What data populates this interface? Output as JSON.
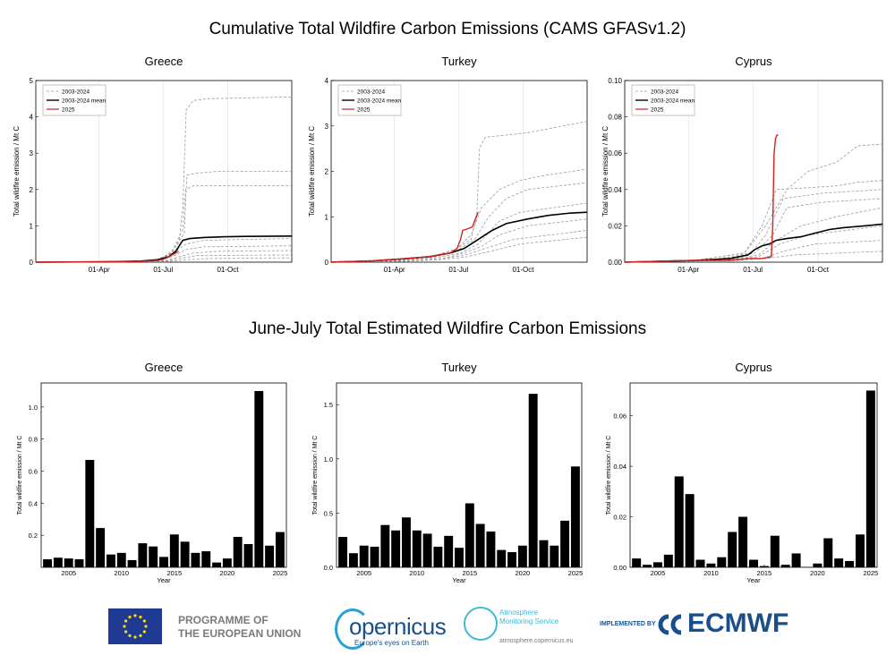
{
  "titles": {
    "top": "Cumulative Total Wildfire Carbon Emissions (CAMS GFASv1.2)",
    "bottom": "June-July Total Estimated Wildfire Carbon Emissions"
  },
  "colors": {
    "history": "#9a9a9a",
    "mean": "#000000",
    "current": "#d62020",
    "bar": "#000000"
  },
  "chart_data": [
    {
      "type": "line",
      "panel": "cumulative-greece",
      "title": "Greece",
      "ylabel": "Total wildfire emission / Mt C",
      "x_ticks": [
        "01-Apr",
        "01-Jul",
        "01-Oct"
      ],
      "x_tick_days": [
        91,
        182,
        274
      ],
      "xlim": [
        1,
        365
      ],
      "ylim": [
        0,
        5
      ],
      "y_ticks": [
        0,
        1,
        2,
        3,
        4,
        5
      ],
      "y_tick_labels": [
        "0",
        "1",
        "2",
        "3",
        "4",
        "5"
      ],
      "legend": [
        "2003-2024",
        "2003-2024 mean",
        "2025"
      ],
      "legend_position": "top-left",
      "series": [
        {
          "name": "2003-2024",
          "kind": "history",
          "x": [
            1,
            120,
            170,
            190,
            205,
            210,
            215,
            225,
            245,
            365
          ],
          "y": [
            0,
            0.02,
            0.05,
            0.2,
            0.6,
            1.5,
            4.2,
            4.45,
            4.5,
            4.55
          ]
        },
        {
          "name": "2003-2024",
          "kind": "history",
          "x": [
            1,
            120,
            170,
            195,
            212,
            216,
            230,
            260,
            365
          ],
          "y": [
            0,
            0.02,
            0.05,
            0.25,
            0.8,
            2.4,
            2.45,
            2.5,
            2.5
          ]
        },
        {
          "name": "2003-2024",
          "kind": "history",
          "x": [
            1,
            120,
            175,
            195,
            210,
            214,
            225,
            260,
            365
          ],
          "y": [
            0,
            0.02,
            0.05,
            0.3,
            0.9,
            2.0,
            2.1,
            2.1,
            2.1
          ]
        },
        {
          "name": "2003-2024",
          "kind": "history",
          "x": [
            1,
            140,
            180,
            200,
            215,
            240,
            280,
            365
          ],
          "y": [
            0,
            0.02,
            0.08,
            0.3,
            0.5,
            0.6,
            0.62,
            0.65
          ]
        },
        {
          "name": "2003-2024",
          "kind": "history",
          "x": [
            1,
            140,
            180,
            200,
            215,
            240,
            365
          ],
          "y": [
            0,
            0.01,
            0.05,
            0.2,
            0.35,
            0.42,
            0.45
          ]
        },
        {
          "name": "2003-2024",
          "kind": "history",
          "x": [
            1,
            140,
            185,
            205,
            225,
            260,
            365
          ],
          "y": [
            0,
            0.01,
            0.04,
            0.15,
            0.25,
            0.3,
            0.32
          ]
        },
        {
          "name": "2003-2024",
          "kind": "history",
          "x": [
            1,
            150,
            185,
            205,
            230,
            365
          ],
          "y": [
            0,
            0.01,
            0.03,
            0.1,
            0.18,
            0.2
          ]
        },
        {
          "name": "2003-2024",
          "kind": "history",
          "x": [
            1,
            150,
            190,
            215,
            250,
            365
          ],
          "y": [
            0,
            0.01,
            0.02,
            0.07,
            0.1,
            0.12
          ]
        },
        {
          "name": "2003-2024 mean",
          "kind": "mean",
          "x": [
            1,
            100,
            150,
            175,
            190,
            200,
            205,
            210,
            220,
            240,
            270,
            300,
            365
          ],
          "y": [
            0,
            0.01,
            0.03,
            0.07,
            0.15,
            0.3,
            0.45,
            0.6,
            0.65,
            0.68,
            0.7,
            0.71,
            0.72
          ]
        },
        {
          "name": "2025",
          "kind": "current",
          "x": [
            1,
            100,
            150,
            175,
            185,
            195,
            200,
            204
          ],
          "y": [
            0,
            0.01,
            0.02,
            0.05,
            0.1,
            0.2,
            0.25,
            0.3
          ]
        }
      ]
    },
    {
      "type": "line",
      "panel": "cumulative-turkey",
      "title": "Turkey",
      "ylabel": "Total wildfire emission / Mt C",
      "x_ticks": [
        "01-Apr",
        "01-Jul",
        "01-Oct"
      ],
      "x_tick_days": [
        91,
        182,
        274
      ],
      "xlim": [
        1,
        365
      ],
      "ylim": [
        0,
        4
      ],
      "y_ticks": [
        0,
        1,
        2,
        3,
        4
      ],
      "y_tick_labels": [
        "0",
        "1",
        "2",
        "3",
        "4"
      ],
      "legend": [
        "2003-2024",
        "2003-2024 mean",
        "2025"
      ],
      "legend_position": "top-left",
      "series": [
        {
          "name": "2003-2024",
          "kind": "history",
          "x": [
            1,
            100,
            150,
            180,
            200,
            208,
            212,
            220,
            250,
            280,
            330,
            365
          ],
          "y": [
            0,
            0.05,
            0.15,
            0.3,
            0.5,
            1.0,
            2.5,
            2.75,
            2.8,
            2.85,
            3.0,
            3.1
          ]
        },
        {
          "name": "2003-2024",
          "kind": "history",
          "x": [
            1,
            100,
            150,
            180,
            200,
            215,
            240,
            270,
            300,
            365
          ],
          "y": [
            0,
            0.05,
            0.15,
            0.3,
            0.6,
            1.2,
            1.6,
            1.8,
            1.9,
            2.05
          ]
        },
        {
          "name": "2003-2024",
          "kind": "history",
          "x": [
            1,
            100,
            150,
            180,
            205,
            225,
            250,
            280,
            365
          ],
          "y": [
            0,
            0.05,
            0.12,
            0.25,
            0.5,
            1.0,
            1.4,
            1.6,
            1.75
          ]
        },
        {
          "name": "2003-2024",
          "kind": "history",
          "x": [
            1,
            100,
            150,
            185,
            210,
            240,
            270,
            365
          ],
          "y": [
            0,
            0.04,
            0.1,
            0.2,
            0.4,
            0.9,
            1.1,
            1.3
          ]
        },
        {
          "name": "2003-2024",
          "kind": "history",
          "x": [
            1,
            110,
            160,
            190,
            215,
            240,
            280,
            365
          ],
          "y": [
            0,
            0.03,
            0.08,
            0.2,
            0.35,
            0.6,
            0.8,
            0.95
          ]
        },
        {
          "name": "2003-2024",
          "kind": "history",
          "x": [
            1,
            110,
            160,
            190,
            220,
            260,
            365
          ],
          "y": [
            0,
            0.03,
            0.08,
            0.15,
            0.3,
            0.5,
            0.7
          ]
        },
        {
          "name": "2003-2024",
          "kind": "history",
          "x": [
            1,
            110,
            160,
            195,
            230,
            270,
            365
          ],
          "y": [
            0,
            0.02,
            0.06,
            0.12,
            0.25,
            0.4,
            0.55
          ]
        },
        {
          "name": "2003-2024 mean",
          "kind": "mean",
          "x": [
            1,
            60,
            100,
            140,
            170,
            190,
            200,
            215,
            230,
            250,
            280,
            310,
            340,
            365
          ],
          "y": [
            0,
            0.03,
            0.07,
            0.12,
            0.2,
            0.3,
            0.4,
            0.55,
            0.7,
            0.85,
            0.95,
            1.03,
            1.08,
            1.1
          ]
        },
        {
          "name": "2025",
          "kind": "current",
          "x": [
            1,
            60,
            100,
            140,
            170,
            180,
            185,
            188,
            192,
            198,
            202,
            206,
            210
          ],
          "y": [
            0,
            0.03,
            0.07,
            0.12,
            0.2,
            0.3,
            0.5,
            0.7,
            0.72,
            0.75,
            0.78,
            0.95,
            1.1
          ]
        }
      ]
    },
    {
      "type": "line",
      "panel": "cumulative-cyprus",
      "title": "Cyprus",
      "ylabel": "Total wildfire emission / Mt C",
      "x_ticks": [
        "01-Apr",
        "01-Jul",
        "01-Oct"
      ],
      "x_tick_days": [
        91,
        182,
        274
      ],
      "xlim": [
        1,
        365
      ],
      "ylim": [
        0,
        0.1
      ],
      "y_ticks": [
        0,
        0.02,
        0.04,
        0.06,
        0.08,
        0.1
      ],
      "y_tick_labels": [
        "0.00",
        "0.02",
        "0.04",
        "0.06",
        "0.08",
        "0.10"
      ],
      "legend": [
        "2003-2024",
        "2003-2024 mean",
        "2025"
      ],
      "legend_position": "top-left",
      "series": [
        {
          "name": "2003-2024",
          "kind": "history",
          "x": [
            1,
            100,
            170,
            200,
            230,
            260,
            300,
            330,
            365
          ],
          "y": [
            0,
            0.001,
            0.005,
            0.02,
            0.04,
            0.05,
            0.055,
            0.064,
            0.065
          ]
        },
        {
          "name": "2003-2024",
          "kind": "history",
          "x": [
            1,
            100,
            170,
            195,
            215,
            260,
            300,
            330,
            365
          ],
          "y": [
            0,
            0.001,
            0.005,
            0.02,
            0.04,
            0.041,
            0.042,
            0.044,
            0.045
          ]
        },
        {
          "name": "2003-2024",
          "kind": "history",
          "x": [
            1,
            120,
            180,
            200,
            225,
            280,
            365
          ],
          "y": [
            0,
            0.001,
            0.005,
            0.015,
            0.035,
            0.038,
            0.04
          ]
        },
        {
          "name": "2003-2024",
          "kind": "history",
          "x": [
            1,
            130,
            185,
            210,
            230,
            280,
            365
          ],
          "y": [
            0,
            0.001,
            0.005,
            0.015,
            0.03,
            0.033,
            0.035
          ]
        },
        {
          "name": "2003-2024",
          "kind": "history",
          "x": [
            1,
            140,
            190,
            215,
            250,
            300,
            365
          ],
          "y": [
            0,
            0.001,
            0.004,
            0.012,
            0.02,
            0.025,
            0.03
          ]
        },
        {
          "name": "2003-2024",
          "kind": "history",
          "x": [
            1,
            140,
            190,
            220,
            260,
            365
          ],
          "y": [
            0,
            0.001,
            0.003,
            0.01,
            0.015,
            0.02
          ]
        },
        {
          "name": "2003-2024",
          "kind": "history",
          "x": [
            1,
            150,
            195,
            225,
            270,
            365
          ],
          "y": [
            0,
            0.001,
            0.002,
            0.006,
            0.01,
            0.012
          ]
        },
        {
          "name": "2003-2024",
          "kind": "history",
          "x": [
            1,
            160,
            200,
            240,
            365
          ],
          "y": [
            0,
            0.001,
            0.002,
            0.004,
            0.006
          ]
        },
        {
          "name": "2003-2024 mean",
          "kind": "mean",
          "x": [
            1,
            100,
            150,
            175,
            185,
            195,
            205,
            215,
            230,
            250,
            270,
            290,
            310,
            340,
            365
          ],
          "y": [
            0,
            0.001,
            0.002,
            0.004,
            0.007,
            0.009,
            0.01,
            0.012,
            0.013,
            0.014,
            0.016,
            0.018,
            0.019,
            0.02,
            0.021
          ]
        },
        {
          "name": "2025",
          "kind": "current",
          "x": [
            1,
            100,
            150,
            175,
            185,
            195,
            208,
            210,
            212,
            214,
            216,
            218
          ],
          "y": [
            0,
            0.001,
            0.001,
            0.002,
            0.002,
            0.002,
            0.003,
            0.02,
            0.06,
            0.068,
            0.07,
            0.07
          ]
        }
      ]
    },
    {
      "type": "bar",
      "panel": "bars-greece",
      "title": "Greece",
      "xlabel": "Year",
      "ylabel": "Total wildfire emission / Mt C",
      "categories": [
        2003,
        2004,
        2005,
        2006,
        2007,
        2008,
        2009,
        2010,
        2011,
        2012,
        2013,
        2014,
        2015,
        2016,
        2017,
        2018,
        2019,
        2020,
        2021,
        2022,
        2023,
        2024,
        2025
      ],
      "values": [
        0.05,
        0.06,
        0.055,
        0.05,
        0.67,
        0.245,
        0.08,
        0.09,
        0.045,
        0.15,
        0.13,
        0.065,
        0.205,
        0.16,
        0.09,
        0.1,
        0.03,
        0.055,
        0.19,
        0.145,
        1.1,
        0.135,
        0.22
      ],
      "x_ticks": [
        2005,
        2010,
        2015,
        2020,
        2025
      ],
      "ylim": [
        0,
        1.15
      ],
      "y_ticks": [
        0.2,
        0.4,
        0.6,
        0.8,
        1.0
      ],
      "y_tick_labels": [
        "0.2",
        "0.4",
        "0.6",
        "0.8",
        "1.0"
      ]
    },
    {
      "type": "bar",
      "panel": "bars-turkey",
      "title": "Turkey",
      "xlabel": "Year",
      "ylabel": "Total wildfire emission / Mt C",
      "categories": [
        2003,
        2004,
        2005,
        2006,
        2007,
        2008,
        2009,
        2010,
        2011,
        2012,
        2013,
        2014,
        2015,
        2016,
        2017,
        2018,
        2019,
        2020,
        2021,
        2022,
        2023,
        2024,
        2025
      ],
      "values": [
        0.28,
        0.13,
        0.2,
        0.19,
        0.39,
        0.34,
        0.46,
        0.34,
        0.31,
        0.19,
        0.29,
        0.18,
        0.59,
        0.4,
        0.33,
        0.16,
        0.14,
        0.2,
        1.6,
        0.25,
        0.2,
        0.43,
        0.93
      ],
      "x_ticks": [
        2005,
        2010,
        2015,
        2020,
        2025
      ],
      "ylim": [
        0,
        1.7
      ],
      "y_ticks": [
        0,
        0.5,
        1.0,
        1.5
      ],
      "y_tick_labels": [
        "0.0",
        "0.5",
        "1.0",
        "1.5"
      ]
    },
    {
      "type": "bar",
      "panel": "bars-cyprus",
      "title": "Cyprus",
      "xlabel": "Year",
      "ylabel": "Total wildfire emission / Mt C",
      "categories": [
        2003,
        2004,
        2005,
        2006,
        2007,
        2008,
        2009,
        2010,
        2011,
        2012,
        2013,
        2014,
        2015,
        2016,
        2017,
        2018,
        2019,
        2020,
        2021,
        2022,
        2023,
        2024,
        2025
      ],
      "values": [
        0.0035,
        0.001,
        0.002,
        0.005,
        0.036,
        0.029,
        0.003,
        0.0015,
        0.004,
        0.014,
        0.02,
        0.003,
        0.0005,
        0.0125,
        0.001,
        0.0055,
        0.0001,
        0.0015,
        0.0115,
        0.0035,
        0.0025,
        0.013,
        0.07
      ],
      "x_ticks": [
        2005,
        2010,
        2015,
        2020,
        2025
      ],
      "ylim": [
        0,
        0.073
      ],
      "y_ticks": [
        0,
        0.02,
        0.04,
        0.06
      ],
      "y_tick_labels": [
        "0.00",
        "0.02",
        "0.04",
        "0.06"
      ]
    }
  ],
  "logos": {
    "eu_line1": "PROGRAMME OF",
    "eu_line2": "THE EUROPEAN UNION",
    "copernicus_name": "opernicus",
    "copernicus_tagline": "Europe's eyes on Earth",
    "cams_line1": "Atmosphere",
    "cams_line2": "Monitoring Service",
    "cams_url": "atmosphere.copernicus.eu",
    "implemented_by": "IMPLEMENTED BY",
    "ecmwf": "ECMWF"
  }
}
